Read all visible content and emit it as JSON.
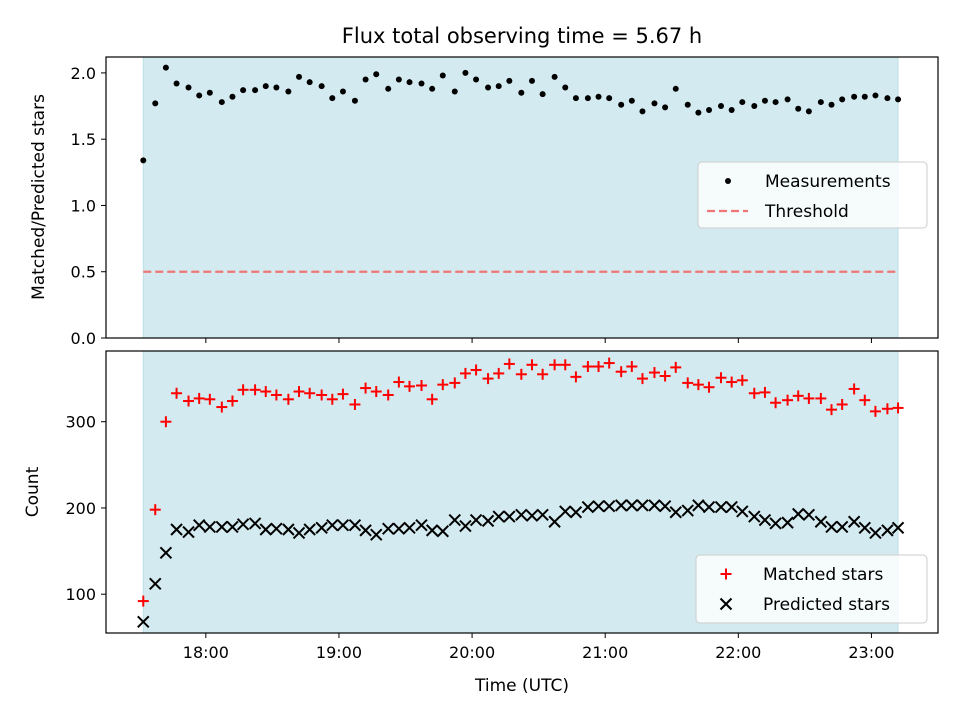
{
  "title": "Flux total observing time = 5.67 h",
  "top_panel": {
    "ylabel": "Matched/Predicted stars",
    "ylim": [
      0,
      2.12
    ],
    "yticks": [
      "0.0",
      "0.5",
      "1.0",
      "1.5",
      "2.0"
    ],
    "legend": {
      "placement": "center-right",
      "measurements_label": "Measurements",
      "threshold_label": "Threshold"
    },
    "threshold": 0.5
  },
  "bottom_panel": {
    "ylabel": "Count",
    "ylim": [
      55,
      382
    ],
    "yticks": [
      "100",
      "200",
      "300"
    ],
    "legend": {
      "placement": "lower-right",
      "matched_label": "Matched stars",
      "predicted_label": "Predicted stars"
    }
  },
  "xlabel": "Time (UTC)",
  "xticks": [
    "18:00",
    "19:00",
    "20:00",
    "21:00",
    "22:00",
    "23:00"
  ],
  "colors": {
    "observing_span": "#d3ebf0",
    "threshold": "#f07575",
    "matched": "#ff0000",
    "predicted": "#000000",
    "measurement": "#000000"
  },
  "chart_data": [
    {
      "type": "scatter",
      "title": "Flux total observing time = 5.67 h",
      "xlabel": "",
      "ylabel": "Matched/Predicted stars",
      "x_unit": "hours UTC",
      "xlim": [
        17.25,
        23.5
      ],
      "ylim": [
        0,
        2.12
      ],
      "shaded_span": [
        17.53,
        23.2
      ],
      "series": [
        {
          "name": "Measurements",
          "x": [
            17.53,
            17.62,
            17.7,
            17.78,
            17.87,
            17.95,
            18.03,
            18.12,
            18.2,
            18.28,
            18.37,
            18.45,
            18.53,
            18.62,
            18.7,
            18.78,
            18.87,
            18.95,
            19.03,
            19.12,
            19.2,
            19.28,
            19.37,
            19.45,
            19.53,
            19.62,
            19.7,
            19.78,
            19.87,
            19.95,
            20.03,
            20.12,
            20.2,
            20.28,
            20.37,
            20.45,
            20.53,
            20.62,
            20.7,
            20.78,
            20.87,
            20.95,
            21.03,
            21.12,
            21.2,
            21.28,
            21.37,
            21.45,
            21.53,
            21.62,
            21.7,
            21.78,
            21.87,
            21.95,
            22.03,
            22.12,
            22.2,
            22.28,
            22.37,
            22.45,
            22.53,
            22.62,
            22.7,
            22.78,
            22.87,
            22.95,
            23.03,
            23.12,
            23.2
          ],
          "y": [
            1.34,
            1.77,
            2.04,
            1.92,
            1.89,
            1.83,
            1.85,
            1.78,
            1.82,
            1.87,
            1.87,
            1.9,
            1.89,
            1.86,
            1.97,
            1.93,
            1.9,
            1.81,
            1.86,
            1.79,
            1.95,
            1.99,
            1.88,
            1.95,
            1.93,
            1.92,
            1.88,
            1.98,
            1.86,
            2.0,
            1.95,
            1.89,
            1.9,
            1.94,
            1.85,
            1.94,
            1.84,
            1.97,
            1.89,
            1.81,
            1.81,
            1.82,
            1.81,
            1.76,
            1.79,
            1.71,
            1.77,
            1.74,
            1.88,
            1.76,
            1.7,
            1.72,
            1.75,
            1.72,
            1.78,
            1.75,
            1.79,
            1.78,
            1.8,
            1.73,
            1.71,
            1.78,
            1.76,
            1.8,
            1.82,
            1.82,
            1.83,
            1.81,
            1.8
          ]
        },
        {
          "name": "Threshold",
          "x": [
            17.53,
            23.2
          ],
          "y": [
            0.5,
            0.5
          ]
        }
      ]
    },
    {
      "type": "scatter",
      "xlabel": "Time (UTC)",
      "ylabel": "Count",
      "x_unit": "hours UTC",
      "xlim": [
        17.25,
        23.5
      ],
      "ylim": [
        55,
        382
      ],
      "shaded_span": [
        17.53,
        23.2
      ],
      "x": [
        17.53,
        17.62,
        17.7,
        17.78,
        17.87,
        17.95,
        18.03,
        18.12,
        18.2,
        18.28,
        18.37,
        18.45,
        18.53,
        18.62,
        18.7,
        18.78,
        18.87,
        18.95,
        19.03,
        19.12,
        19.2,
        19.28,
        19.37,
        19.45,
        19.53,
        19.62,
        19.7,
        19.78,
        19.87,
        19.95,
        20.03,
        20.12,
        20.2,
        20.28,
        20.37,
        20.45,
        20.53,
        20.62,
        20.7,
        20.78,
        20.87,
        20.95,
        21.03,
        21.12,
        21.2,
        21.28,
        21.37,
        21.45,
        21.53,
        21.62,
        21.7,
        21.78,
        21.87,
        21.95,
        22.03,
        22.12,
        22.2,
        22.28,
        22.37,
        22.45,
        22.53,
        22.62,
        22.7,
        22.78,
        22.87,
        22.95,
        23.03,
        23.12,
        23.2
      ],
      "series": [
        {
          "name": "Matched stars",
          "values": [
            92,
            198,
            300,
            333,
            324,
            327,
            326,
            317,
            324,
            337,
            337,
            335,
            331,
            326,
            335,
            333,
            331,
            326,
            332,
            320,
            339,
            335,
            331,
            346,
            341,
            342,
            326,
            343,
            345,
            356,
            360,
            350,
            356,
            367,
            355,
            366,
            355,
            366,
            366,
            352,
            364,
            364,
            368,
            358,
            364,
            350,
            357,
            353,
            363,
            345,
            343,
            340,
            351,
            346,
            348,
            333,
            334,
            322,
            325,
            330,
            327,
            327,
            314,
            320,
            338,
            325,
            312,
            315,
            316
          ]
        },
        {
          "name": "Predicted stars",
          "values": [
            68,
            112,
            148,
            175,
            172,
            180,
            178,
            178,
            178,
            181,
            182,
            175,
            176,
            175,
            171,
            175,
            177,
            180,
            180,
            180,
            174,
            169,
            176,
            176,
            177,
            180,
            174,
            173,
            186,
            179,
            186,
            185,
            190,
            190,
            192,
            191,
            192,
            184,
            196,
            195,
            201,
            202,
            202,
            203,
            203,
            203,
            203,
            202,
            195,
            197,
            203,
            201,
            201,
            201,
            196,
            190,
            186,
            182,
            183,
            193,
            192,
            184,
            178,
            178,
            184,
            177,
            171,
            174,
            177
          ]
        }
      ]
    }
  ]
}
